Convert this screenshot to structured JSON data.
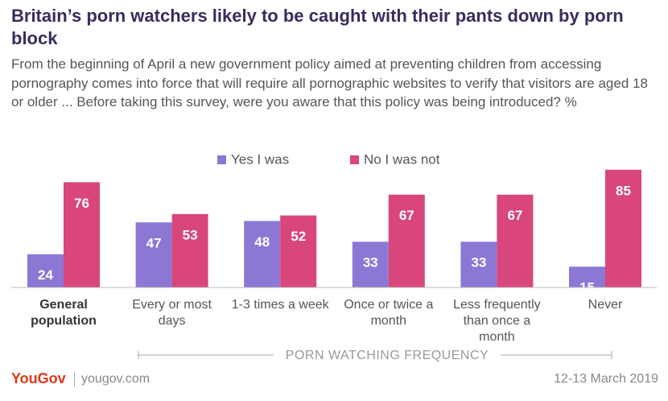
{
  "chart_data": {
    "type": "bar",
    "title": "Britain’s porn watchers likely to be caught with their pants down by porn block",
    "subtitle": "From the beginning of April a new government policy aimed at preventing children from accessing pornography comes into force that will require all pornographic websites to verify that visitors are aged 18 or older ... Before taking this survey, were you aware that this policy was being introduced? %",
    "categories": [
      "General population",
      "Every or most days",
      "1-3 times a week",
      "Once or twice a month",
      "Less frequently than once a month",
      "Never"
    ],
    "series": [
      {
        "name": "Yes I was",
        "color": "#8c78d4",
        "values": [
          24,
          47,
          48,
          33,
          33,
          15
        ]
      },
      {
        "name": "No I was not",
        "color": "#d9467c",
        "values": [
          76,
          53,
          52,
          67,
          67,
          85
        ]
      }
    ],
    "x_label": "PORN WATCHING FREQUENCY",
    "brand": "YouGov",
    "website": "yougov.com",
    "date": "12-13 March 2019"
  }
}
